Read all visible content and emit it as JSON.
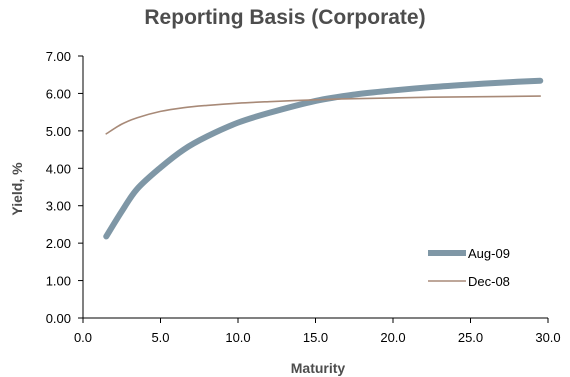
{
  "chart_data": {
    "type": "line",
    "title": "Reporting Basis (Corporate)",
    "xlabel": "Maturity",
    "ylabel": "Yield, %",
    "xlim": [
      0,
      30
    ],
    "ylim": [
      0,
      7
    ],
    "x_ticks": [
      "0.0",
      "5.0",
      "10.0",
      "15.0",
      "20.0",
      "25.0",
      "30.0"
    ],
    "y_ticks": [
      "0.00",
      "1.00",
      "2.00",
      "3.00",
      "4.00",
      "5.00",
      "6.00",
      "7.00"
    ],
    "grid": false,
    "legend_position": "bottom-right",
    "series": [
      {
        "name": "Aug-09",
        "color": "#7f97a6",
        "x": [
          1.5,
          2.5,
          3.5,
          5,
          6.5,
          8,
          10,
          12,
          15,
          17.5,
          20,
          22.5,
          25,
          27.5,
          29.5
        ],
        "values": [
          2.18,
          2.85,
          3.45,
          4.02,
          4.5,
          4.85,
          5.22,
          5.48,
          5.8,
          5.97,
          6.08,
          6.17,
          6.24,
          6.3,
          6.34
        ]
      },
      {
        "name": "Dec-08",
        "color": "#a88a78",
        "x": [
          1.5,
          2.5,
          3.5,
          5,
          6.5,
          8,
          10,
          12,
          15,
          17.5,
          20,
          22.5,
          25,
          27.5,
          29.5
        ],
        "values": [
          4.92,
          5.18,
          5.35,
          5.52,
          5.62,
          5.68,
          5.74,
          5.78,
          5.83,
          5.86,
          5.88,
          5.9,
          5.91,
          5.92,
          5.93
        ]
      }
    ]
  }
}
